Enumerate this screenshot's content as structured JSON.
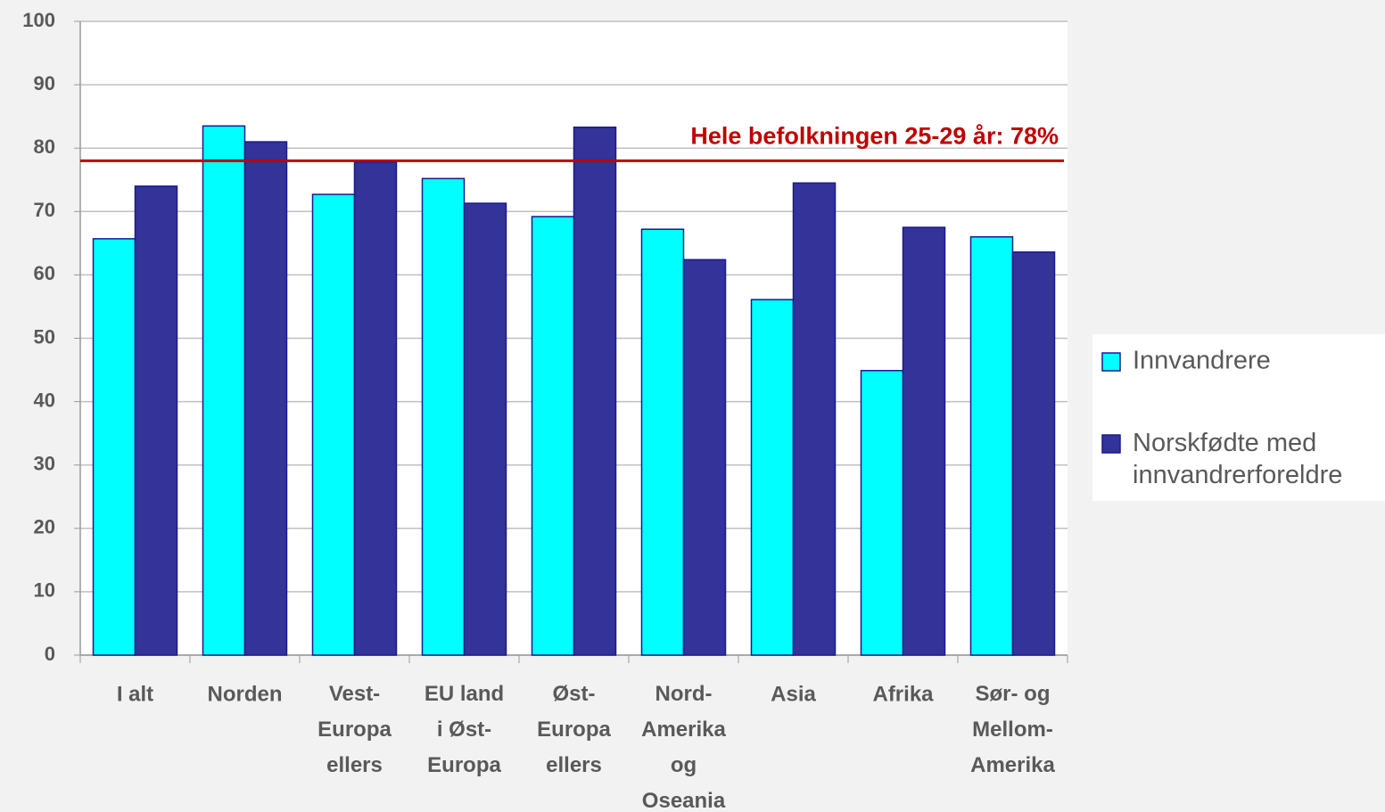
{
  "chart_data": {
    "type": "bar",
    "categories": [
      "I alt",
      "Norden",
      "Vest-\nEuropa\nellers",
      "EU land\ni Øst-\nEuropa",
      "Øst-\nEuropa\nellers",
      "Nord-\nAmerika\nog\nOseania",
      "Asia",
      "Afrika",
      "Sør- og\nMellom-\nAmerika"
    ],
    "series": [
      {
        "name": "Innvandrere",
        "color": "#00ffff",
        "values": [
          65.7,
          83.5,
          72.7,
          75.2,
          69.2,
          67.2,
          56.1,
          44.9,
          66.0
        ]
      },
      {
        "name": "Norskfødte med\ninnvandrerforeldre",
        "color": "#333399",
        "values": [
          74.0,
          81.0,
          77.8,
          71.3,
          83.3,
          62.4,
          74.5,
          67.5,
          63.6
        ]
      }
    ],
    "reference_line": {
      "value": 78,
      "label": "Hele befolkningen 25-29 år: 78%",
      "color": "#c00000"
    },
    "ylim": [
      0,
      100
    ],
    "yticks": [
      0,
      10,
      20,
      30,
      40,
      50,
      60,
      70,
      80,
      90,
      100
    ],
    "grid": true,
    "legend": "right"
  }
}
